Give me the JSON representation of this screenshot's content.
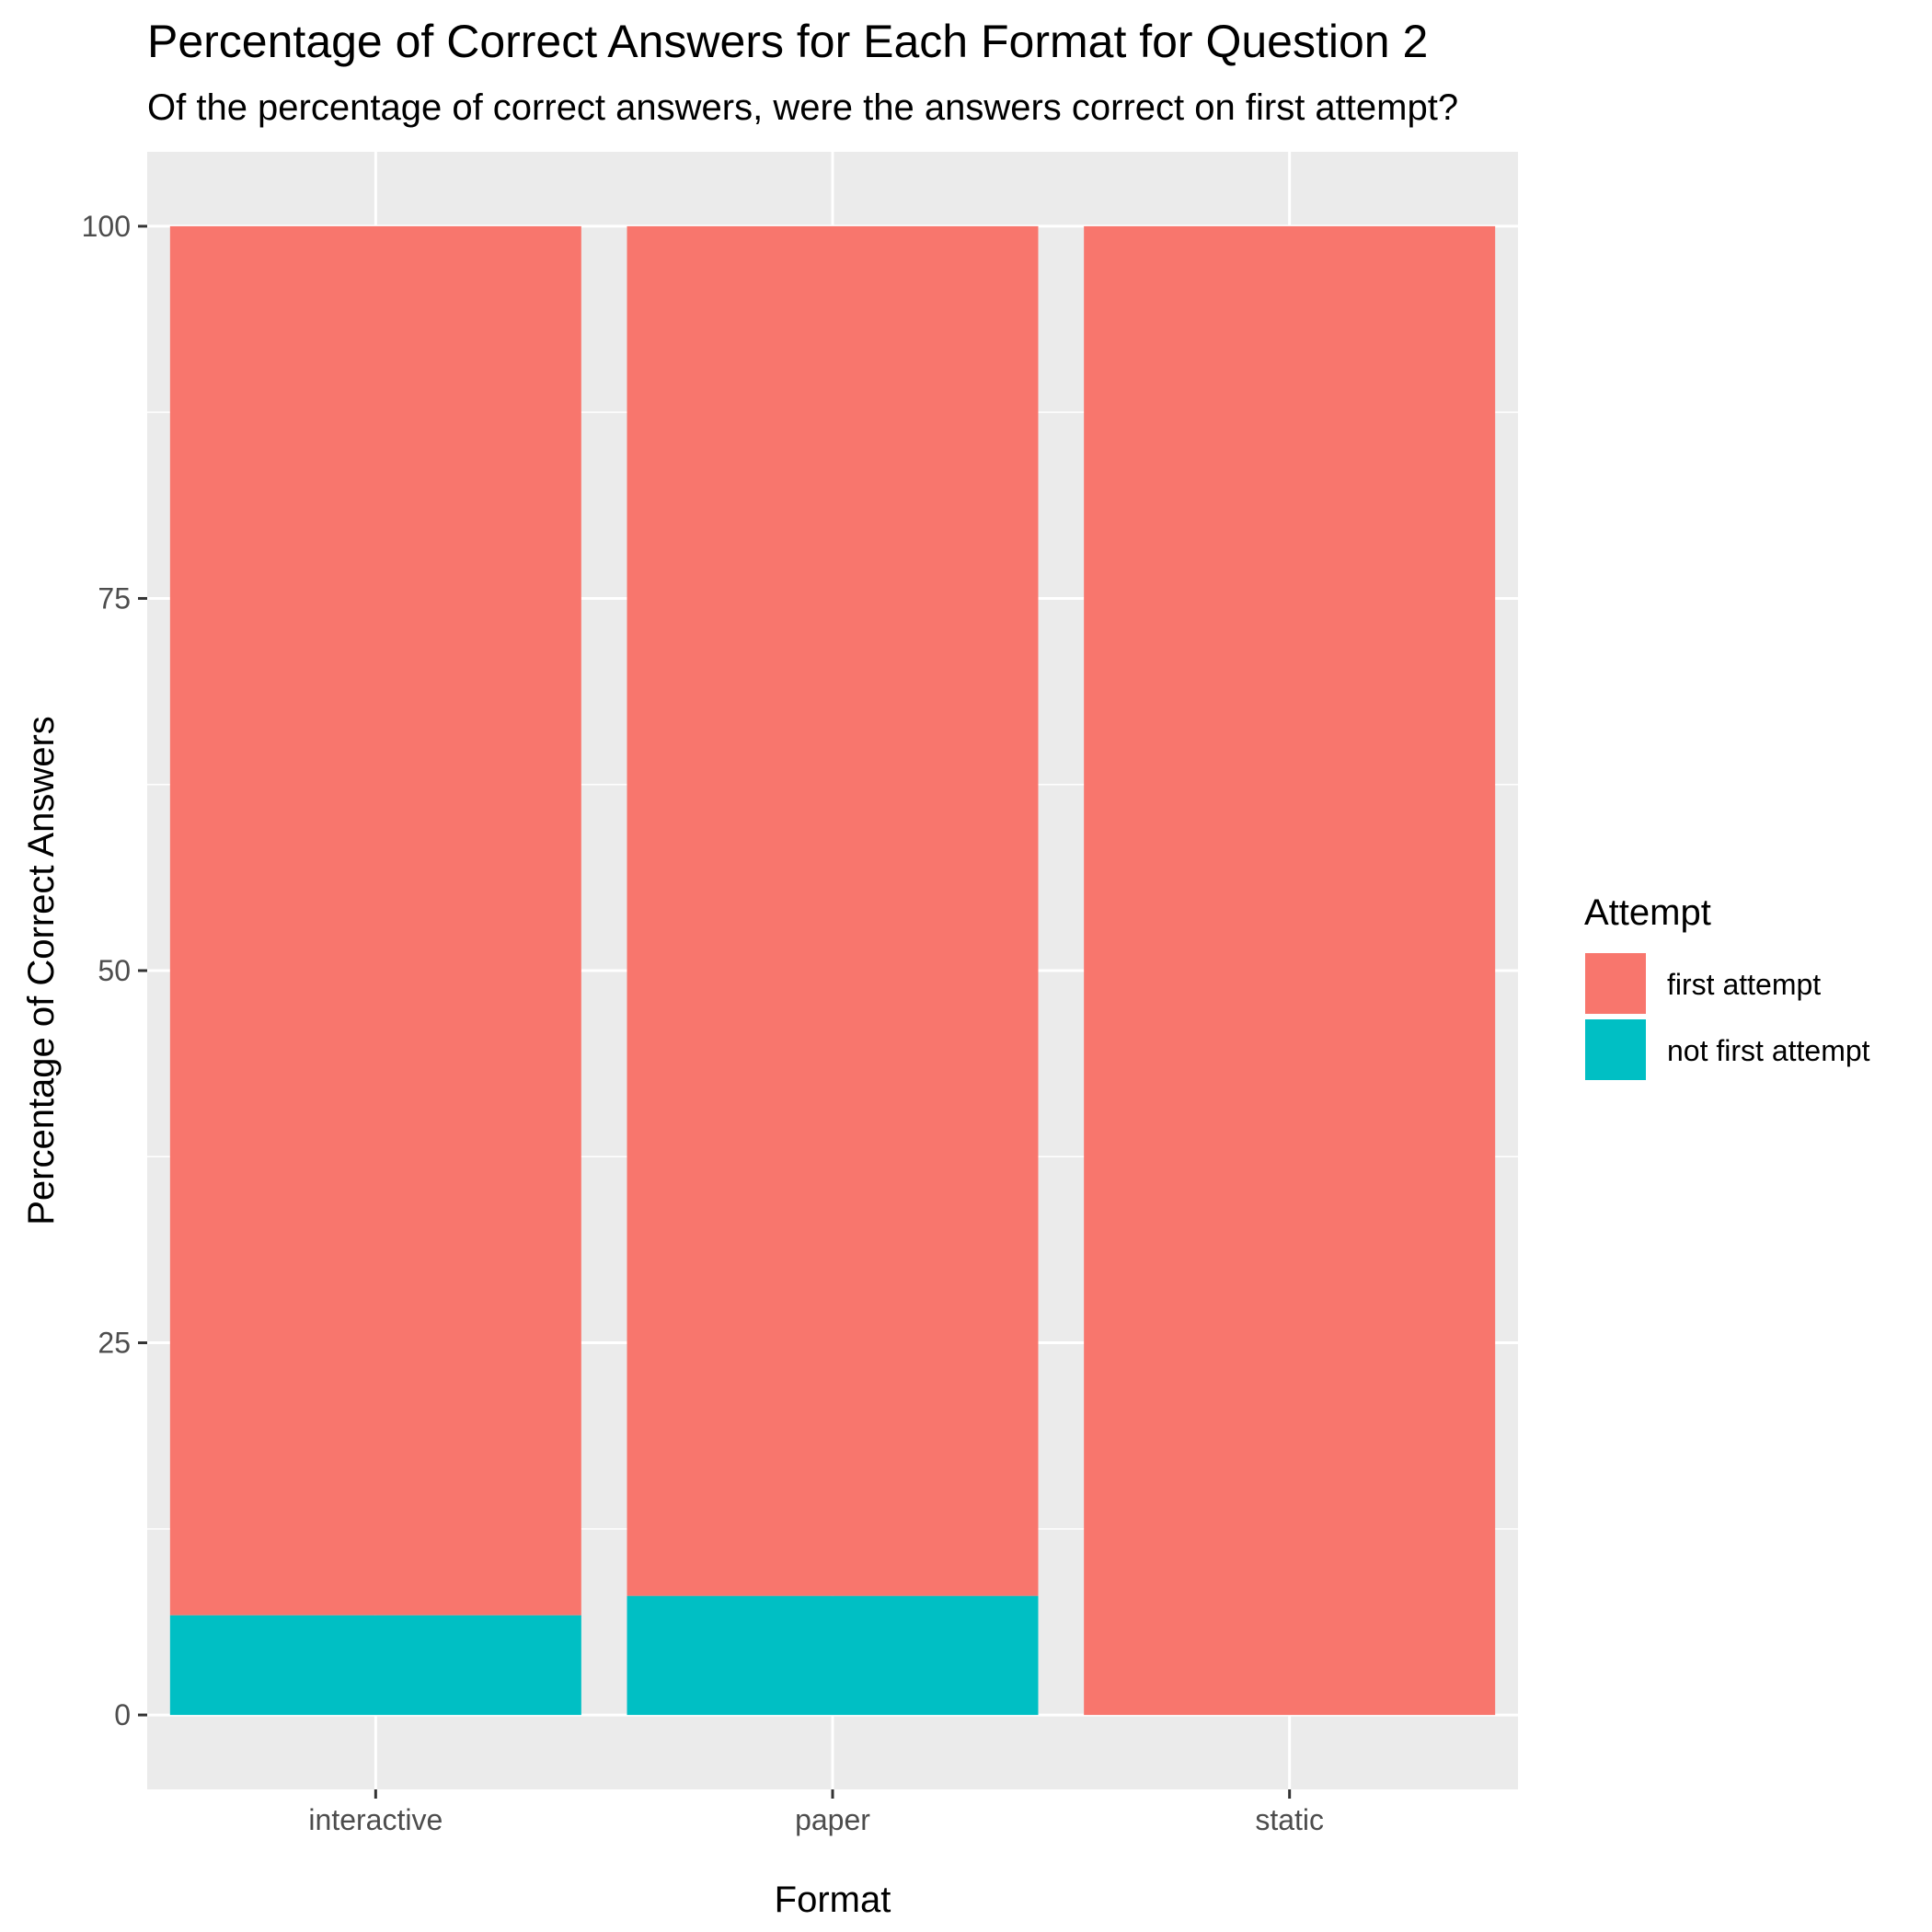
{
  "chart_data": {
    "type": "bar",
    "stacked": true,
    "title": "Percentage of Correct Answers for Each Format for Question 2",
    "subtitle": "Of the percentage of correct answers, were the answers correct on first attempt?",
    "xlabel": "Format",
    "ylabel": "Percentage of Correct Answers",
    "categories": [
      "interactive",
      "paper",
      "static"
    ],
    "series": [
      {
        "name": "first attempt",
        "color": "#F8766D",
        "values": [
          93.3,
          92.0,
          100.0
        ]
      },
      {
        "name": "not first attempt",
        "color": "#00BFC4",
        "values": [
          6.7,
          8.0,
          0.0
        ]
      }
    ],
    "ylim": [
      -5,
      105
    ],
    "yticks": [
      0,
      25,
      50,
      75,
      100
    ],
    "grid": true,
    "legend": {
      "title": "Attempt",
      "placement": "right"
    }
  }
}
